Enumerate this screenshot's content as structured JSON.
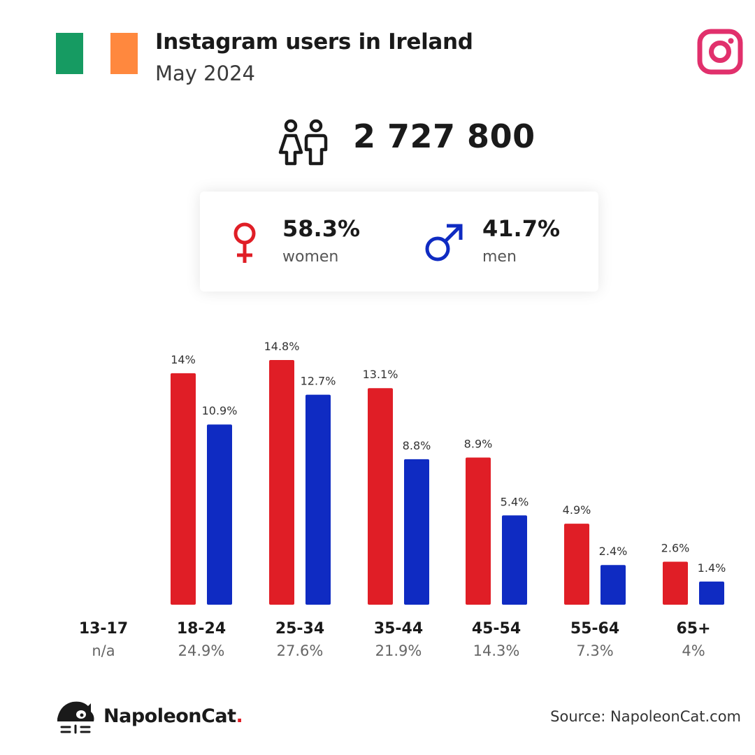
{
  "header": {
    "title": "Instagram users in Ireland",
    "subtitle": "May 2024",
    "flag_colors": [
      "#169b62",
      "#ffffff",
      "#ff883e"
    ],
    "platform_icon": "instagram-icon",
    "platform_color": "#e1306c"
  },
  "total": {
    "icon": "people-icon",
    "value": "2 727 800"
  },
  "gender": {
    "women": {
      "icon": "female-symbol-icon",
      "pct": "58.3%",
      "label": "women",
      "color": "#e01e26"
    },
    "men": {
      "icon": "male-symbol-icon",
      "pct": "41.7%",
      "label": "men",
      "color": "#0f2bc2"
    }
  },
  "chart_data": {
    "type": "bar",
    "categories": [
      "13-17",
      "18-24",
      "25-34",
      "35-44",
      "45-54",
      "55-64",
      "65+"
    ],
    "category_totals": [
      "n/a",
      "24.9%",
      "27.6%",
      "21.9%",
      "14.3%",
      "7.3%",
      "4%"
    ],
    "series": [
      {
        "color": "#e01e26",
        "values": [
          null,
          14,
          14.8,
          13.1,
          8.9,
          4.9,
          2.6
        ],
        "labels": [
          "",
          "14%",
          "14.8%",
          "13.1%",
          "8.9%",
          "4.9%",
          "2.6%"
        ]
      },
      {
        "color": "#0f2bc2",
        "values": [
          null,
          10.9,
          12.7,
          8.8,
          5.4,
          2.4,
          1.4
        ],
        "labels": [
          "",
          "10.9%",
          "12.7%",
          "8.8%",
          "5.4%",
          "2.4%",
          "1.4%"
        ]
      }
    ],
    "ylim": [
      0,
      14.8
    ],
    "grid": false,
    "legend": "none"
  },
  "footer": {
    "brand_name": "NapoleonCat",
    "brand_dot": ".",
    "brand_icon": "napoleoncat-logo-icon",
    "source": "Source: NapoleonCat.com"
  }
}
